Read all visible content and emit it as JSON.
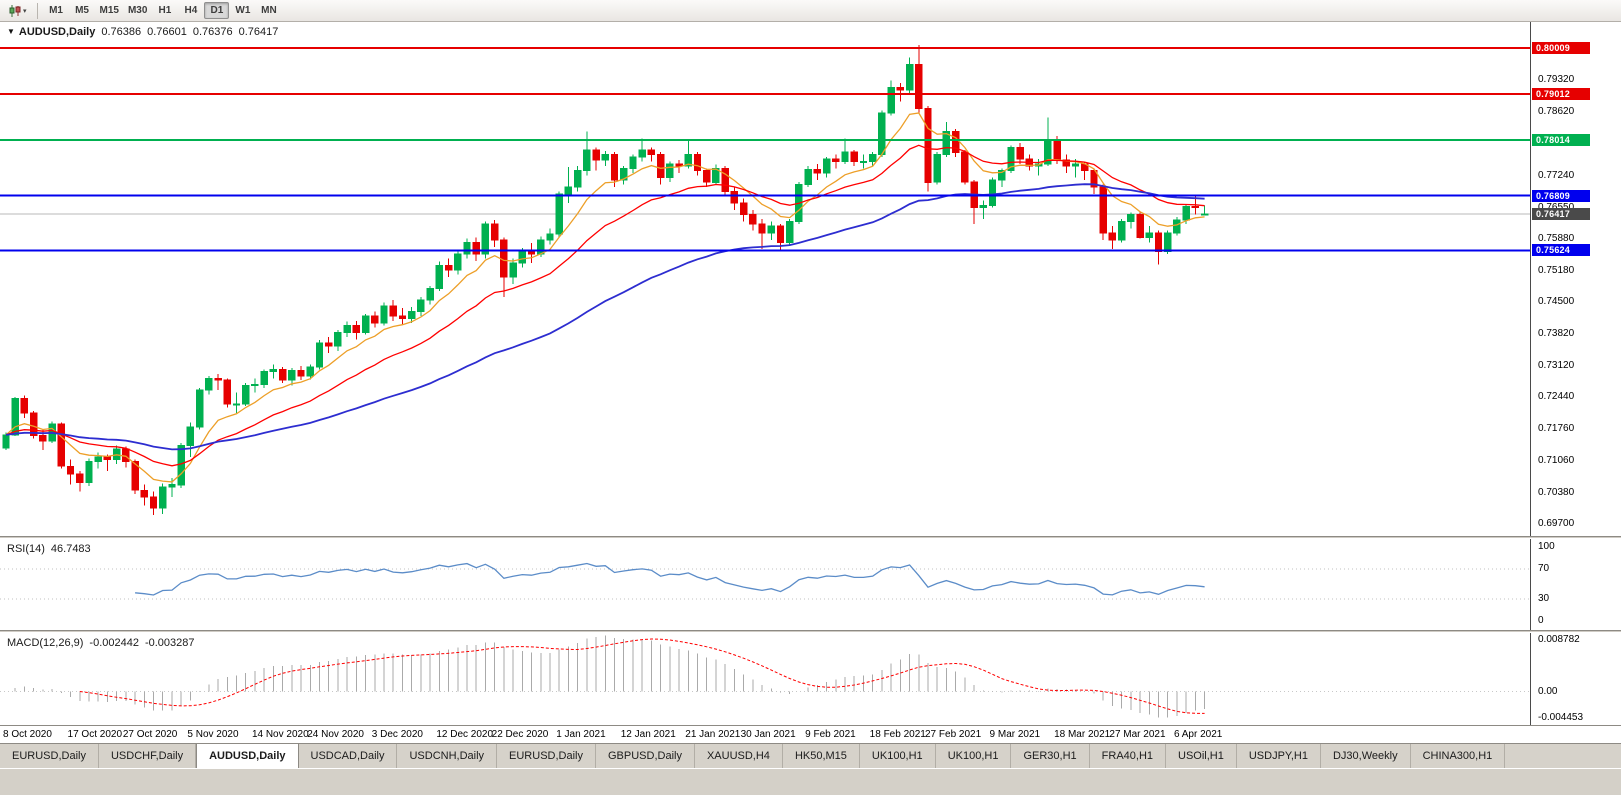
{
  "toolbar": {
    "chart_type_icon": "candlestick-chart",
    "timeframes": [
      "M1",
      "M5",
      "M15",
      "M30",
      "H1",
      "H4",
      "D1",
      "W1",
      "MN"
    ],
    "active_timeframe": "D1"
  },
  "chart": {
    "title_symbol": "AUDUSD,Daily",
    "ohlc": {
      "open": "0.76386",
      "high": "0.76601",
      "low": "0.76376",
      "close": "0.76417"
    },
    "levels": [
      {
        "price": 0.80009,
        "label": "0.80009",
        "color": "#e60000"
      },
      {
        "price": 0.79012,
        "label": "0.79012",
        "color": "#e60000"
      },
      {
        "price": 0.78014,
        "label": "0.78014",
        "color": "#00b050"
      },
      {
        "price": 0.76809,
        "label": "0.76809",
        "color": "#0000ee"
      },
      {
        "price": 0.75624,
        "label": "0.75624",
        "color": "#0000ee"
      }
    ],
    "current_price": {
      "value": 0.76417,
      "label": "0.76417",
      "bg": "#4a4a4a"
    },
    "y_ticks": [
      "0.79320",
      "0.78620",
      "0.77940",
      "0.77240",
      "0.76550",
      "0.75880",
      "0.75180",
      "0.74500",
      "0.73820",
      "0.73120",
      "0.72440",
      "0.71760",
      "0.71060",
      "0.70380",
      "0.69700"
    ],
    "x_ticks": [
      "8 Oct 2020",
      "17 Oct 2020",
      "27 Oct 2020",
      "5 Nov 2020",
      "14 Nov 2020",
      "24 Nov 2020",
      "3 Dec 2020",
      "12 Dec 2020",
      "22 Dec 2020",
      "1 Jan 2021",
      "12 Jan 2021",
      "21 Jan 2021",
      "30 Jan 2021",
      "9 Feb 2021",
      "18 Feb 2021",
      "27 Feb 2021",
      "9 Mar 2021",
      "18 Mar 2021",
      "27 Mar 2021",
      "6 Apr 2021"
    ]
  },
  "rsi": {
    "label": "RSI(14)",
    "value": "46.7483",
    "ticks": [
      "100",
      "70",
      "30",
      "0"
    ],
    "guide_levels": [
      70,
      30
    ],
    "line_color": "#5b8cc8"
  },
  "macd": {
    "label": "MACD(12,26,9)",
    "value": "-0.002442",
    "signal": "-0.003287",
    "ticks": [
      "0.008782",
      "0.00",
      "-0.004453"
    ],
    "hist_color": "#aaaaaa",
    "signal_color": "#ff0000"
  },
  "tabs": {
    "items": [
      "EURUSD,Daily",
      "USDCHF,Daily",
      "AUDUSD,Daily",
      "USDCAD,Daily",
      "USDCNH,Daily",
      "EURUSD,Daily",
      "GBPUSD,Daily",
      "XAUUSD,H4",
      "HK50,M15",
      "UK100,H1",
      "UK100,H1",
      "GER30,H1",
      "FRA40,H1",
      "USOil,H1",
      "USDJPY,H1",
      "DJ30,Weekly",
      "CHINA300,H1"
    ],
    "active_index": 2
  },
  "chart_data": {
    "type": "candlestick",
    "symbol": "AUDUSD",
    "timeframe": "Daily",
    "ylim": [
      0.6944,
      0.8057
    ],
    "colors": {
      "up": "#00b050",
      "down": "#e60000"
    },
    "moving_averages": [
      {
        "name": "fast",
        "period": 8,
        "color": "#ed9f28",
        "width": 1.3
      },
      {
        "name": "medium",
        "period": 20,
        "color": "#ff0000",
        "width": 1.3
      },
      {
        "name": "slow",
        "period": 55,
        "color": "#2d2dd0",
        "width": 1.8
      }
    ],
    "indicators": {
      "rsi_period": 14,
      "macd": [
        12,
        26,
        9
      ]
    },
    "x_tick_indices": [
      0,
      7,
      13,
      20,
      27,
      33,
      40,
      47,
      53,
      60,
      67,
      74,
      80,
      87,
      94,
      100,
      107,
      114,
      120,
      127
    ],
    "candles": [
      [
        0.7135,
        0.7168,
        0.713,
        0.7163
      ],
      [
        0.7163,
        0.7245,
        0.716,
        0.7242
      ],
      [
        0.7242,
        0.7248,
        0.72,
        0.721
      ],
      [
        0.721,
        0.7215,
        0.7155,
        0.7162
      ],
      [
        0.7162,
        0.7175,
        0.713,
        0.715
      ],
      [
        0.715,
        0.7192,
        0.7145,
        0.7186
      ],
      [
        0.7186,
        0.719,
        0.709,
        0.7095
      ],
      [
        0.7095,
        0.711,
        0.7055,
        0.7078
      ],
      [
        0.7078,
        0.7085,
        0.704,
        0.706
      ],
      [
        0.706,
        0.7112,
        0.7052,
        0.7105
      ],
      [
        0.7105,
        0.7125,
        0.709,
        0.7115
      ],
      [
        0.7115,
        0.712,
        0.7085,
        0.711
      ],
      [
        0.711,
        0.714,
        0.71,
        0.7132
      ],
      [
        0.7132,
        0.7138,
        0.7092,
        0.7105
      ],
      [
        0.7105,
        0.711,
        0.7035,
        0.7043
      ],
      [
        0.7043,
        0.7055,
        0.701,
        0.7028
      ],
      [
        0.7028,
        0.704,
        0.699,
        0.7005
      ],
      [
        0.7005,
        0.7058,
        0.6992,
        0.705
      ],
      [
        0.705,
        0.707,
        0.7028,
        0.7055
      ],
      [
        0.7055,
        0.7145,
        0.7048,
        0.714
      ],
      [
        0.714,
        0.719,
        0.7115,
        0.718
      ],
      [
        0.718,
        0.7265,
        0.7175,
        0.726
      ],
      [
        0.726,
        0.729,
        0.725,
        0.7285
      ],
      [
        0.7285,
        0.7295,
        0.726,
        0.7282
      ],
      [
        0.7282,
        0.7285,
        0.7222,
        0.723
      ],
      [
        0.723,
        0.7255,
        0.721,
        0.723
      ],
      [
        0.723,
        0.7275,
        0.7225,
        0.727
      ],
      [
        0.727,
        0.7285,
        0.7255,
        0.7272
      ],
      [
        0.7272,
        0.7305,
        0.7265,
        0.73
      ],
      [
        0.73,
        0.7315,
        0.7285,
        0.7305
      ],
      [
        0.7305,
        0.731,
        0.7275,
        0.7282
      ],
      [
        0.7282,
        0.7308,
        0.727,
        0.7302
      ],
      [
        0.7302,
        0.7312,
        0.7282,
        0.729
      ],
      [
        0.729,
        0.7315,
        0.7283,
        0.731
      ],
      [
        0.731,
        0.7368,
        0.7305,
        0.7362
      ],
      [
        0.7362,
        0.7375,
        0.734,
        0.7355
      ],
      [
        0.7355,
        0.739,
        0.7345,
        0.7385
      ],
      [
        0.7385,
        0.7408,
        0.7375,
        0.74
      ],
      [
        0.74,
        0.741,
        0.737,
        0.7385
      ],
      [
        0.7385,
        0.7425,
        0.738,
        0.742
      ],
      [
        0.742,
        0.743,
        0.7395,
        0.7405
      ],
      [
        0.7405,
        0.745,
        0.74,
        0.7442
      ],
      [
        0.7442,
        0.7455,
        0.741,
        0.742
      ],
      [
        0.742,
        0.7438,
        0.7402,
        0.7415
      ],
      [
        0.7415,
        0.744,
        0.7405,
        0.743
      ],
      [
        0.743,
        0.7462,
        0.742,
        0.7455
      ],
      [
        0.7455,
        0.7485,
        0.7445,
        0.748
      ],
      [
        0.748,
        0.7538,
        0.7475,
        0.753
      ],
      [
        0.753,
        0.7545,
        0.7505,
        0.752
      ],
      [
        0.752,
        0.756,
        0.751,
        0.7555
      ],
      [
        0.7555,
        0.7588,
        0.7545,
        0.758
      ],
      [
        0.758,
        0.759,
        0.754,
        0.7555
      ],
      [
        0.7555,
        0.7625,
        0.7545,
        0.762
      ],
      [
        0.762,
        0.7628,
        0.757,
        0.7585
      ],
      [
        0.7585,
        0.759,
        0.7462,
        0.7505
      ],
      [
        0.7505,
        0.7545,
        0.749,
        0.7535
      ],
      [
        0.7535,
        0.7568,
        0.7525,
        0.756
      ],
      [
        0.756,
        0.7578,
        0.7535,
        0.7555
      ],
      [
        0.7555,
        0.7592,
        0.7548,
        0.7585
      ],
      [
        0.7585,
        0.761,
        0.7575,
        0.7598
      ],
      [
        0.7598,
        0.769,
        0.759,
        0.7685
      ],
      [
        0.7685,
        0.7743,
        0.7665,
        0.77
      ],
      [
        0.77,
        0.7745,
        0.769,
        0.7735
      ],
      [
        0.7735,
        0.782,
        0.7725,
        0.778
      ],
      [
        0.778,
        0.7785,
        0.7735,
        0.7758
      ],
      [
        0.7758,
        0.7778,
        0.7745,
        0.777
      ],
      [
        0.777,
        0.7775,
        0.77,
        0.7715
      ],
      [
        0.7715,
        0.7745,
        0.7705,
        0.774
      ],
      [
        0.774,
        0.777,
        0.773,
        0.7765
      ],
      [
        0.7765,
        0.7805,
        0.7755,
        0.778
      ],
      [
        0.778,
        0.7785,
        0.7755,
        0.777
      ],
      [
        0.777,
        0.7775,
        0.7705,
        0.772
      ],
      [
        0.772,
        0.7755,
        0.771,
        0.775
      ],
      [
        0.775,
        0.7758,
        0.773,
        0.7745
      ],
      [
        0.7745,
        0.78,
        0.774,
        0.777
      ],
      [
        0.777,
        0.7775,
        0.7725,
        0.7735
      ],
      [
        0.7735,
        0.774,
        0.77,
        0.771
      ],
      [
        0.771,
        0.7748,
        0.7705,
        0.774
      ],
      [
        0.774,
        0.7745,
        0.768,
        0.769
      ],
      [
        0.769,
        0.77,
        0.765,
        0.7665
      ],
      [
        0.7665,
        0.7675,
        0.7625,
        0.764
      ],
      [
        0.764,
        0.765,
        0.7605,
        0.762
      ],
      [
        0.762,
        0.763,
        0.7565,
        0.76
      ],
      [
        0.76,
        0.7625,
        0.7585,
        0.7615
      ],
      [
        0.7615,
        0.762,
        0.756,
        0.758
      ],
      [
        0.758,
        0.763,
        0.7575,
        0.7625
      ],
      [
        0.7625,
        0.771,
        0.762,
        0.7705
      ],
      [
        0.7705,
        0.7745,
        0.77,
        0.7738
      ],
      [
        0.7738,
        0.775,
        0.7715,
        0.773
      ],
      [
        0.773,
        0.7765,
        0.772,
        0.776
      ],
      [
        0.776,
        0.777,
        0.774,
        0.7755
      ],
      [
        0.7755,
        0.7805,
        0.775,
        0.7775
      ],
      [
        0.7775,
        0.778,
        0.7745,
        0.7755
      ],
      [
        0.7755,
        0.777,
        0.774,
        0.7755
      ],
      [
        0.7755,
        0.7775,
        0.7745,
        0.777
      ],
      [
        0.777,
        0.7865,
        0.7765,
        0.786
      ],
      [
        0.786,
        0.793,
        0.7855,
        0.7915
      ],
      [
        0.7915,
        0.7925,
        0.7885,
        0.791
      ],
      [
        0.791,
        0.798,
        0.79,
        0.7965
      ],
      [
        0.7965,
        0.8007,
        0.786,
        0.787
      ],
      [
        0.787,
        0.7875,
        0.769,
        0.771
      ],
      [
        0.771,
        0.7775,
        0.7705,
        0.777
      ],
      [
        0.777,
        0.784,
        0.7765,
        0.782
      ],
      [
        0.782,
        0.7825,
        0.7765,
        0.7775
      ],
      [
        0.7775,
        0.778,
        0.7705,
        0.771
      ],
      [
        0.771,
        0.7715,
        0.762,
        0.7655
      ],
      [
        0.7655,
        0.767,
        0.763,
        0.766
      ],
      [
        0.766,
        0.772,
        0.7655,
        0.7715
      ],
      [
        0.7715,
        0.774,
        0.77,
        0.7735
      ],
      [
        0.7735,
        0.779,
        0.773,
        0.7785
      ],
      [
        0.7785,
        0.7795,
        0.775,
        0.776
      ],
      [
        0.776,
        0.777,
        0.7735,
        0.7745
      ],
      [
        0.7745,
        0.776,
        0.7725,
        0.775
      ],
      [
        0.775,
        0.785,
        0.7745,
        0.78
      ],
      [
        0.78,
        0.781,
        0.775,
        0.7758
      ],
      [
        0.7758,
        0.777,
        0.773,
        0.7745
      ],
      [
        0.7745,
        0.776,
        0.772,
        0.775
      ],
      [
        0.775,
        0.7755,
        0.7715,
        0.7735
      ],
      [
        0.7735,
        0.774,
        0.7685,
        0.77
      ],
      [
        0.77,
        0.7705,
        0.7585,
        0.76
      ],
      [
        0.76,
        0.7615,
        0.7565,
        0.7585
      ],
      [
        0.7585,
        0.763,
        0.758,
        0.7625
      ],
      [
        0.7625,
        0.7645,
        0.761,
        0.764
      ],
      [
        0.764,
        0.7645,
        0.7588,
        0.759
      ],
      [
        0.759,
        0.7615,
        0.758,
        0.76
      ],
      [
        0.76,
        0.7605,
        0.7532,
        0.756
      ],
      [
        0.756,
        0.7605,
        0.7555,
        0.76
      ],
      [
        0.76,
        0.7635,
        0.7595,
        0.7628
      ],
      [
        0.7628,
        0.7662,
        0.762,
        0.7658
      ],
      [
        0.7658,
        0.768,
        0.764,
        0.7655
      ],
      [
        0.76386,
        0.76601,
        0.76376,
        0.76417
      ]
    ]
  }
}
